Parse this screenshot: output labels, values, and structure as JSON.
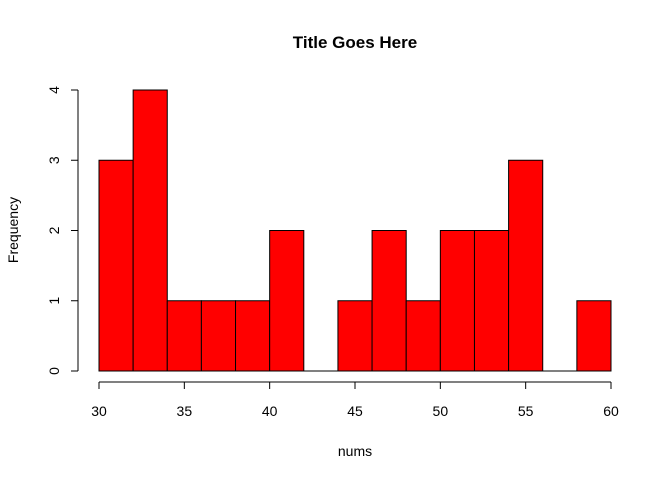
{
  "chart_data": {
    "type": "bar",
    "title": "Title Goes Here",
    "xlabel": "nums",
    "ylabel": "Frequency",
    "bar_color": "#ff0000",
    "bins": [
      {
        "start": 30,
        "end": 32,
        "count": 3
      },
      {
        "start": 32,
        "end": 34,
        "count": 4
      },
      {
        "start": 34,
        "end": 36,
        "count": 1
      },
      {
        "start": 36,
        "end": 38,
        "count": 1
      },
      {
        "start": 38,
        "end": 40,
        "count": 1
      },
      {
        "start": 40,
        "end": 42,
        "count": 2
      },
      {
        "start": 42,
        "end": 44,
        "count": 0
      },
      {
        "start": 44,
        "end": 46,
        "count": 1
      },
      {
        "start": 46,
        "end": 48,
        "count": 2
      },
      {
        "start": 48,
        "end": 50,
        "count": 1
      },
      {
        "start": 50,
        "end": 52,
        "count": 2
      },
      {
        "start": 52,
        "end": 54,
        "count": 2
      },
      {
        "start": 54,
        "end": 56,
        "count": 3
      },
      {
        "start": 56,
        "end": 58,
        "count": 0
      },
      {
        "start": 58,
        "end": 60,
        "count": 1
      }
    ],
    "xlim": [
      30,
      60
    ],
    "ylim": [
      0,
      4
    ],
    "xticks": [
      30,
      35,
      40,
      45,
      50,
      55,
      60
    ],
    "yticks": [
      0,
      1,
      2,
      3,
      4
    ],
    "grid": false
  }
}
